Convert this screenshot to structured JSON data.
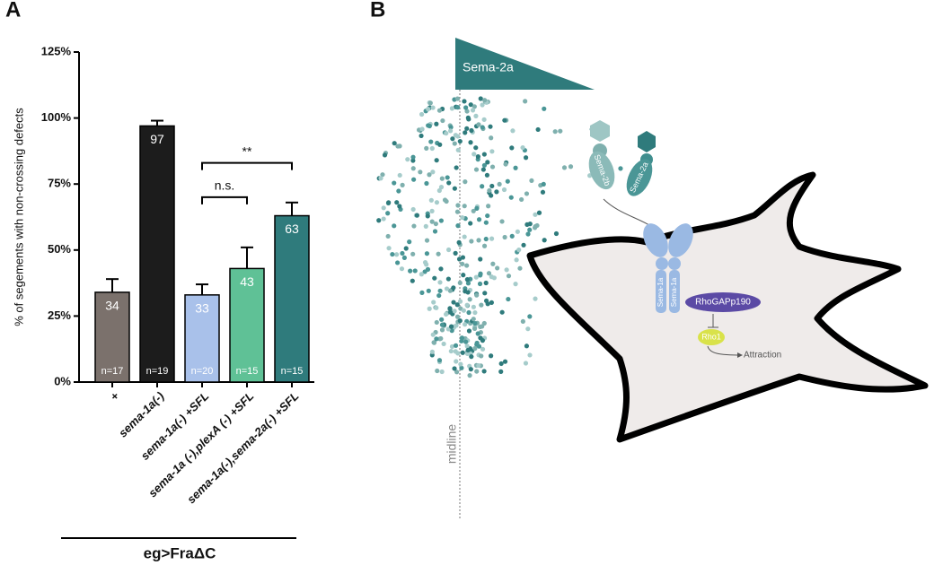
{
  "panel_labels": [
    "A",
    "B"
  ],
  "chart_data": {
    "type": "bar",
    "y_label": "% of segements with non-crossing defects",
    "x_group_label": "eg>FraΔC",
    "categories": [
      "+",
      "sema-1a(-)",
      "sema-1a(-) +SFL",
      "sema-1a (-),plexA (-) +SFL",
      "sema-1a(-),sema-2a(-) +SFL"
    ],
    "values": [
      34,
      97,
      33,
      43,
      63
    ],
    "errors": [
      5,
      2,
      4,
      8,
      5
    ],
    "colors": [
      "#7b716c",
      "#1c1c1c",
      "#a9c1ea",
      "#5fc196",
      "#2f7b7c"
    ],
    "n_labels": [
      "n=17",
      "n=19",
      "n=20",
      "n=15",
      "n=15"
    ],
    "ylim": [
      0,
      125
    ],
    "yticks": [
      {
        "value": 0,
        "label": "0%"
      },
      {
        "value": 25,
        "label": "25%"
      },
      {
        "value": 50,
        "label": "50%"
      },
      {
        "value": 75,
        "label": "75%"
      },
      {
        "value": 100,
        "label": "100%"
      },
      {
        "value": 125,
        "label": "125%"
      }
    ],
    "brackets": [
      {
        "label": "n.s.",
        "between": [
          2,
          3
        ],
        "y": 70
      },
      {
        "label": "**",
        "between": [
          2,
          4
        ],
        "y": 83
      }
    ]
  },
  "diagram": {
    "gradient_label": "Sema-2a",
    "midline_label": "midline",
    "ligands": [
      "Sema-2b",
      "Sema-2a"
    ],
    "receptors": [
      "Sema-1a",
      "Sema-1a"
    ],
    "gap": "RhoGAPp190",
    "gtpase": "Rho1",
    "output": "Attraction"
  }
}
